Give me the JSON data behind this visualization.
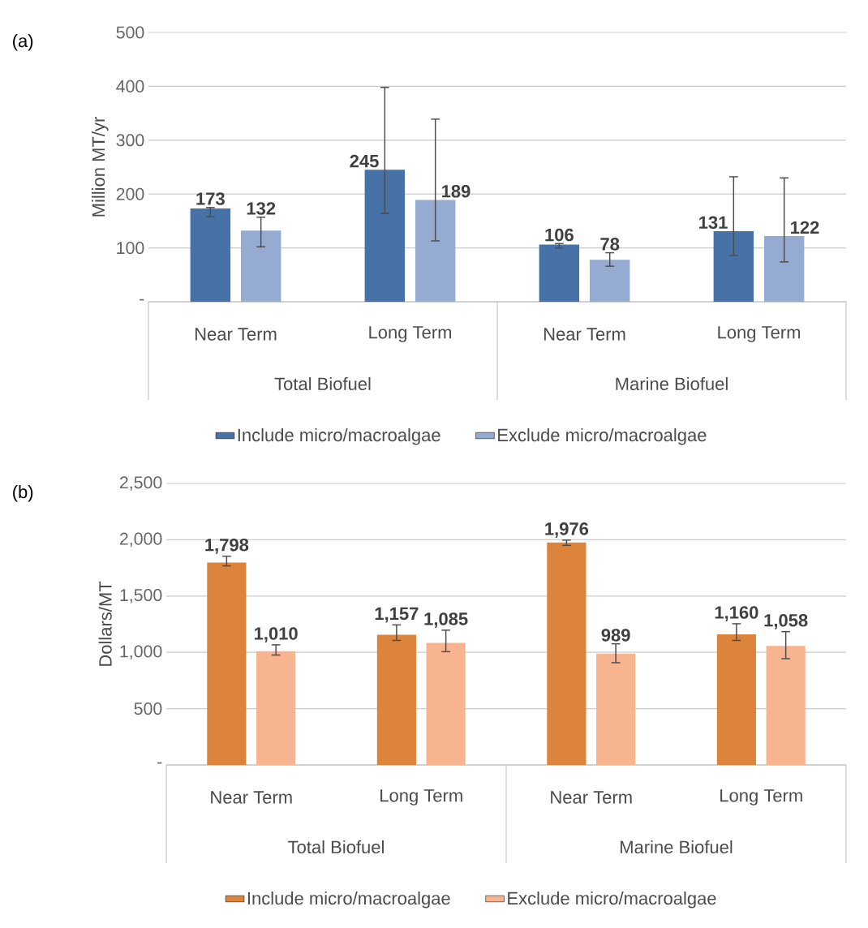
{
  "chart_data": [
    {
      "type": "bar",
      "title": "(a)",
      "ylabel": "Million MT/yr",
      "categories": [
        "Near Term",
        "Long Term",
        "Near Term",
        "Long Term"
      ],
      "annotations": [
        "Total Biofuel",
        "Marine Biofuel"
      ],
      "series": [
        {
          "name": "Include micro/macroalgae",
          "color": "#4672a8",
          "values": [
            173,
            245,
            106,
            131
          ],
          "errors": [
            [
              158,
              175
            ],
            [
              164,
              398
            ],
            [
              100,
              108
            ],
            [
              86,
              232
            ]
          ]
        },
        {
          "name": "Exclude micro/macroalgae",
          "color": "#95abd2",
          "values": [
            132,
            189,
            78,
            122
          ],
          "errors": [
            [
              102,
              157
            ],
            [
              113,
              339
            ],
            [
              66,
              91
            ],
            [
              74,
              230
            ]
          ]
        }
      ],
      "ylim": [
        0,
        500
      ],
      "yticks": [
        {
          "value": 0,
          "label": "-"
        },
        100,
        200,
        300,
        400,
        500
      ],
      "grid": "y",
      "legend": "bottom",
      "data_labels": true
    },
    {
      "type": "bar",
      "title": "(b)",
      "ylabel": "Dollars/MT",
      "categories": [
        "Near Term",
        "Long Term",
        "Near Term",
        "Long Term"
      ],
      "annotations": [
        "Total Biofuel",
        "Marine Biofuel"
      ],
      "series": [
        {
          "name": "Include micro/macroalgae",
          "color": "#dc843c",
          "values": [
            1798,
            1157,
            1976,
            1160
          ],
          "value_labels": [
            "1,798",
            "1,157",
            "1,976",
            "1,160"
          ],
          "errors": [
            [
              1768,
              1854
            ],
            [
              1106,
              1244
            ],
            [
              1950,
              1997
            ],
            [
              1106,
              1254
            ]
          ]
        },
        {
          "name": "Exclude micro/macroalgae",
          "color": "#f8b48f",
          "values": [
            1010,
            1085,
            989,
            1058
          ],
          "value_labels": [
            "1,010",
            "1,085",
            "989",
            "1,058"
          ],
          "errors": [
            [
              976,
              1067
            ],
            [
              1006,
              1197
            ],
            [
              908,
              1076
            ],
            [
              944,
              1184
            ]
          ]
        }
      ],
      "ylim": [
        0,
        2500
      ],
      "yticks": [
        {
          "value": 0,
          "label": "-"
        },
        {
          "value": 500,
          "label": "500"
        },
        {
          "value": 1000,
          "label": "1,000"
        },
        {
          "value": 1500,
          "label": "1,500"
        },
        {
          "value": 2000,
          "label": "2,000"
        },
        {
          "value": 2500,
          "label": "2,500"
        }
      ],
      "grid": "y",
      "legend": "bottom"
    }
  ]
}
